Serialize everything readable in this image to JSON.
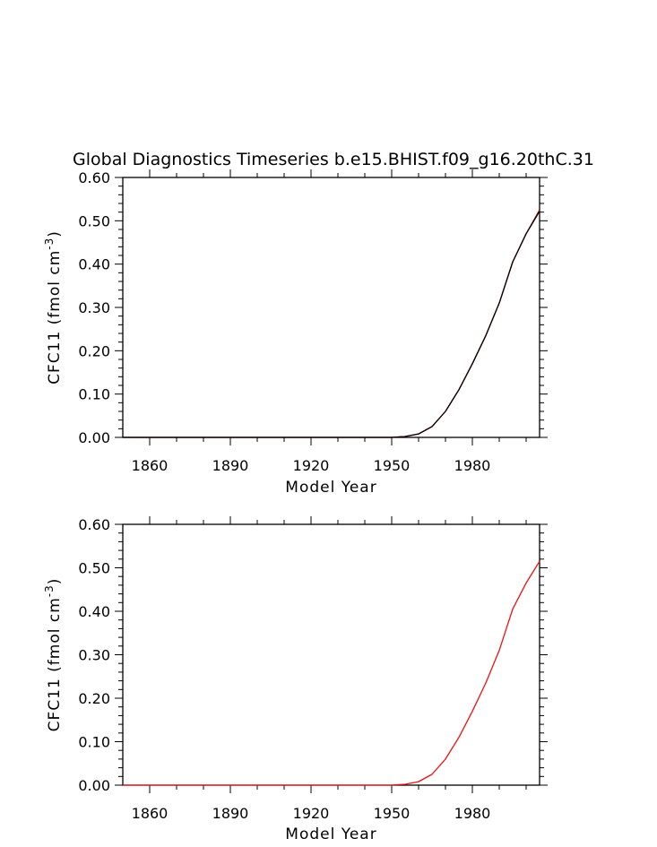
{
  "chart_data": [
    {
      "type": "line",
      "title": "Global Diagnostics Timeseries b.e15.BHIST.f09_g16.20thC.31",
      "xlabel": "Model Year",
      "ylabel": "CFC11 (fmol cm",
      "ylabel_sup": "-3",
      "ylabel_close": ")",
      "xlim": [
        1850,
        2005
      ],
      "ylim": [
        0,
        0.6
      ],
      "xticks": [
        1860,
        1890,
        1920,
        1950,
        1980
      ],
      "yticks": [
        "0.00",
        "0.10",
        "0.20",
        "0.30",
        "0.40",
        "0.50",
        "0.60"
      ],
      "grid": false,
      "series": [
        {
          "color": "#cc0000",
          "x": [
            1850,
            1950,
            1955,
            1960,
            1965,
            1970,
            1975,
            1980,
            1985,
            1990,
            1995,
            2000,
            2005
          ],
          "y": [
            0,
            0,
            0.002,
            0.008,
            0.025,
            0.06,
            0.11,
            0.17,
            0.235,
            0.31,
            0.405,
            0.47,
            0.525
          ]
        },
        {
          "color": "#000000",
          "x": [
            1850,
            1950,
            1955,
            1960,
            1965,
            1970,
            1975,
            1980,
            1985,
            1990,
            1995,
            2000,
            2005
          ],
          "y": [
            0,
            0,
            0.002,
            0.008,
            0.025,
            0.06,
            0.11,
            0.17,
            0.235,
            0.31,
            0.405,
            0.47,
            0.522
          ]
        }
      ]
    },
    {
      "type": "line",
      "title": "",
      "xlabel": "Model Year",
      "ylabel": "CFC11 (fmol cm",
      "ylabel_sup": "-3",
      "ylabel_close": ")",
      "xlim": [
        1850,
        2005
      ],
      "ylim": [
        0,
        0.6
      ],
      "xticks": [
        1860,
        1890,
        1920,
        1950,
        1980
      ],
      "yticks": [
        "0.00",
        "0.10",
        "0.20",
        "0.30",
        "0.40",
        "0.50",
        "0.60"
      ],
      "grid": false,
      "series": [
        {
          "color": "#ee1111",
          "x": [
            1850,
            1950,
            1955,
            1960,
            1965,
            1970,
            1975,
            1980,
            1985,
            1990,
            1995,
            2000,
            2005
          ],
          "y": [
            0,
            0,
            0.002,
            0.008,
            0.025,
            0.06,
            0.11,
            0.17,
            0.235,
            0.31,
            0.405,
            0.465,
            0.515
          ]
        }
      ]
    }
  ]
}
